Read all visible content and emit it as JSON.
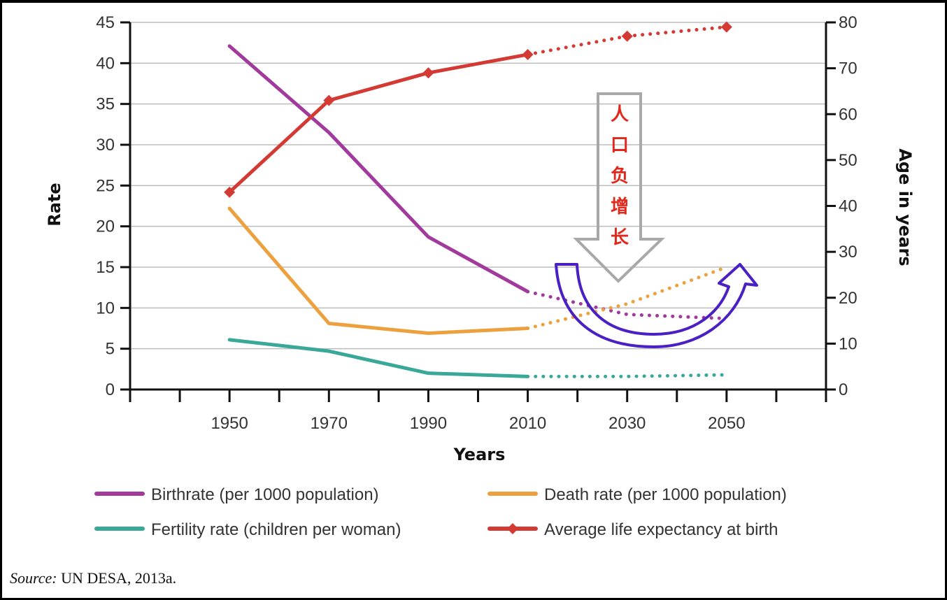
{
  "chart_data": {
    "type": "line",
    "x_title": "Years",
    "y_left_title": "Rate",
    "y_right_title": "Age in years",
    "x_ticks": [
      "1950",
      "1970",
      "1990",
      "2010",
      "2030",
      "2050"
    ],
    "y_left_ticks": [
      "0",
      "5",
      "10",
      "15",
      "20",
      "25",
      "30",
      "35",
      "40",
      "45"
    ],
    "y_right_ticks": [
      "0",
      "10",
      "20",
      "30",
      "40",
      "50",
      "60",
      "70",
      "80"
    ],
    "y_left_range": [
      0,
      45
    ],
    "y_right_range": [
      0,
      80
    ],
    "x_range": [
      1930,
      2070
    ],
    "grid": "horizontal",
    "legend_position": "bottom",
    "series": [
      {
        "name": "Birthrate (per 1000 population)",
        "axis": "left",
        "color": "#a23a9e",
        "marker": "none",
        "solid": [
          [
            1950,
            42.1
          ],
          [
            1970,
            31.5
          ],
          [
            1990,
            18.7
          ],
          [
            2010,
            12.0
          ]
        ],
        "projected": [
          [
            2010,
            12.0
          ],
          [
            2030,
            9.2
          ],
          [
            2050,
            8.7
          ]
        ]
      },
      {
        "name": "Death rate (per 1000 population)",
        "axis": "left",
        "color": "#eda03e",
        "marker": "none",
        "solid": [
          [
            1950,
            22.2
          ],
          [
            1970,
            8.1
          ],
          [
            1990,
            6.9
          ],
          [
            2010,
            7.5
          ]
        ],
        "projected": [
          [
            2010,
            7.5
          ],
          [
            2030,
            10.5
          ],
          [
            2050,
            15.0
          ]
        ]
      },
      {
        "name": "Fertility rate (children per woman)",
        "axis": "left",
        "color": "#3aa899",
        "marker": "none",
        "solid": [
          [
            1950,
            6.1
          ],
          [
            1970,
            4.7
          ],
          [
            1990,
            2.0
          ],
          [
            2010,
            1.6
          ]
        ],
        "projected": [
          [
            2010,
            1.6
          ],
          [
            2030,
            1.6
          ],
          [
            2050,
            1.8
          ]
        ]
      },
      {
        "name": "Average life expectancy at birth",
        "axis": "right",
        "color": "#d33a33",
        "marker": "diamond",
        "solid": [
          [
            1950,
            43
          ],
          [
            1970,
            63
          ],
          [
            1990,
            69
          ],
          [
            2010,
            73
          ]
        ],
        "projected": [
          [
            2010,
            73
          ],
          [
            2030,
            77
          ],
          [
            2050,
            79
          ]
        ]
      }
    ],
    "annotation": {
      "chars": [
        "人",
        "口",
        "负",
        "增",
        "长"
      ],
      "arrow_color": "#a8a8a8",
      "curve_arrow_color": "#4a1fc4",
      "text_color": "#e0291c"
    }
  },
  "source": {
    "label": "Source:",
    "text": "UN DESA, 2013a."
  }
}
